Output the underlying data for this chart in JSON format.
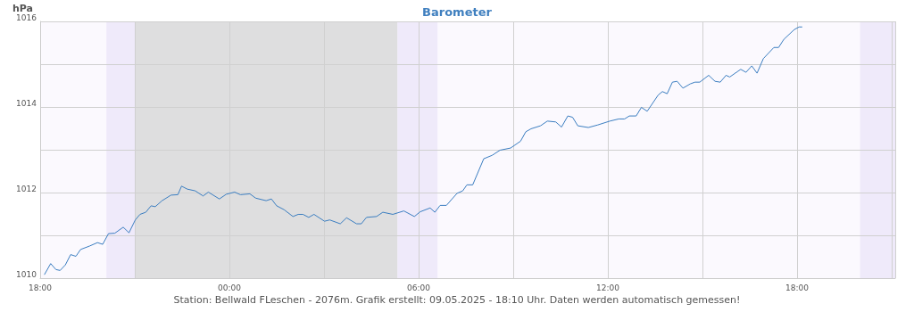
{
  "chart_data": {
    "type": "line",
    "title": "Barometer",
    "ylabel": "hPa",
    "annotations": [
      "Station: Bellwald FLeschen - 2076m. Grafik erstellt: 09.05.2025 - 18:10 Uhr. Daten werden automatisch gemessen!"
    ],
    "series": [
      {
        "color": "#3a7dc0",
        "x": [
          "2025-05-08T18:08",
          "2025-05-08T18:20",
          "2025-05-08T18:30",
          "2025-05-08T18:38",
          "2025-05-08T18:48",
          "2025-05-08T18:58",
          "2025-05-08T19:08",
          "2025-05-08T19:17",
          "2025-05-08T19:34",
          "2025-05-08T19:49",
          "2025-05-08T19:59",
          "2025-05-08T20:10",
          "2025-05-08T20:22",
          "2025-05-08T20:38",
          "2025-05-08T20:49",
          "2025-05-08T21:01",
          "2025-05-08T21:10",
          "2025-05-08T21:21",
          "2025-05-08T21:31",
          "2025-05-08T21:39",
          "2025-05-08T21:52",
          "2025-05-08T22:09",
          "2025-05-08T22:22",
          "2025-05-08T22:29",
          "2025-05-08T22:40",
          "2025-05-08T22:55",
          "2025-05-08T23:10",
          "2025-05-08T23:20",
          "2025-05-08T23:41",
          "2025-05-08T23:54",
          "2025-05-09T00:10",
          "2025-05-09T00:21",
          "2025-05-09T00:39",
          "2025-05-09T00:50",
          "2025-05-09T01:10",
          "2025-05-09T01:20",
          "2025-05-09T01:30",
          "2025-05-09T01:44",
          "2025-05-09T02:01",
          "2025-05-09T02:11",
          "2025-05-09T02:20",
          "2025-05-09T02:31",
          "2025-05-09T02:41",
          "2025-05-09T03:01",
          "2025-05-09T03:11",
          "2025-05-09T03:31",
          "2025-05-09T03:43",
          "2025-05-09T04:02",
          "2025-05-09T04:11",
          "2025-05-09T04:21",
          "2025-05-09T04:40",
          "2025-05-09T04:52",
          "2025-05-09T05:11",
          "2025-05-09T05:32",
          "2025-05-09T05:52",
          "2025-05-09T06:03",
          "2025-05-09T06:22",
          "2025-05-09T06:31",
          "2025-05-09T06:41",
          "2025-05-09T06:53",
          "2025-05-09T07:13",
          "2025-05-09T07:24",
          "2025-05-09T07:32",
          "2025-05-09T07:43",
          "2025-05-09T08:04",
          "2025-05-09T08:20",
          "2025-05-09T08:35",
          "2025-05-09T08:55",
          "2025-05-09T09:14",
          "2025-05-09T09:24",
          "2025-05-09T09:34",
          "2025-05-09T09:52",
          "2025-05-09T10:05",
          "2025-05-09T10:21",
          "2025-05-09T10:32",
          "2025-05-09T10:44",
          "2025-05-09T10:53",
          "2025-05-09T11:03",
          "2025-05-09T11:23",
          "2025-05-09T11:41",
          "2025-05-09T12:04",
          "2025-05-09T12:21",
          "2025-05-09T12:32",
          "2025-05-09T12:41",
          "2025-05-09T12:54",
          "2025-05-09T13:04",
          "2025-05-09T13:15",
          "2025-05-09T13:36",
          "2025-05-09T13:44",
          "2025-05-09T13:53",
          "2025-05-09T14:03",
          "2025-05-09T14:12",
          "2025-05-09T14:23",
          "2025-05-09T14:37",
          "2025-05-09T14:46",
          "2025-05-09T14:55",
          "2025-05-09T15:12",
          "2025-05-09T15:24",
          "2025-05-09T15:34",
          "2025-05-09T15:45",
          "2025-05-09T15:52",
          "2025-05-09T16:13",
          "2025-05-09T16:23",
          "2025-05-09T16:34",
          "2025-05-09T16:44",
          "2025-05-09T16:56",
          "2025-05-09T17:16",
          "2025-05-09T17:25",
          "2025-05-09T17:35",
          "2025-05-09T17:55",
          "2025-05-09T18:04",
          "2025-05-09T18:10"
        ],
        "values": [
          1010.08,
          1010.34,
          1010.2,
          1010.18,
          1010.31,
          1010.55,
          1010.51,
          1010.67,
          1010.75,
          1010.83,
          1010.79,
          1011.04,
          1011.05,
          1011.19,
          1011.06,
          1011.36,
          1011.49,
          1011.54,
          1011.69,
          1011.67,
          1011.81,
          1011.94,
          1011.95,
          1012.15,
          1012.08,
          1012.04,
          1011.92,
          1012.01,
          1011.85,
          1011.96,
          1012.01,
          1011.95,
          1011.97,
          1011.87,
          1011.81,
          1011.85,
          1011.69,
          1011.6,
          1011.44,
          1011.49,
          1011.49,
          1011.42,
          1011.49,
          1011.33,
          1011.36,
          1011.27,
          1011.41,
          1011.27,
          1011.27,
          1011.42,
          1011.44,
          1011.54,
          1011.49,
          1011.57,
          1011.44,
          1011.55,
          1011.64,
          1011.54,
          1011.7,
          1011.7,
          1011.98,
          1012.04,
          1012.18,
          1012.18,
          1012.79,
          1012.87,
          1012.99,
          1013.04,
          1013.2,
          1013.42,
          1013.49,
          1013.56,
          1013.67,
          1013.65,
          1013.53,
          1013.79,
          1013.76,
          1013.56,
          1013.52,
          1013.58,
          1013.67,
          1013.72,
          1013.72,
          1013.79,
          1013.79,
          1013.99,
          1013.9,
          1014.28,
          1014.36,
          1014.31,
          1014.58,
          1014.6,
          1014.44,
          1014.54,
          1014.58,
          1014.58,
          1014.74,
          1014.6,
          1014.58,
          1014.74,
          1014.7,
          1014.88,
          1014.81,
          1014.96,
          1014.79,
          1015.13,
          1015.39,
          1015.39,
          1015.58,
          1015.81,
          1015.87,
          1015.87
        ]
      }
    ],
    "xlim": [
      "2025-05-08T18:00",
      "2025-05-09T21:07"
    ],
    "xticks": [
      {
        "value": "2025-05-08T18:00",
        "label": "18:00"
      },
      {
        "value": "2025-05-08T21:00",
        "label": null
      },
      {
        "value": "2025-05-09T00:00",
        "label": "00:00"
      },
      {
        "value": "2025-05-09T03:00",
        "label": null
      },
      {
        "value": "2025-05-09T06:00",
        "label": "06:00"
      },
      {
        "value": "2025-05-09T09:00",
        "label": null
      },
      {
        "value": "2025-05-09T12:00",
        "label": "12:00"
      },
      {
        "value": "2025-05-09T15:00",
        "label": null
      },
      {
        "value": "2025-05-09T18:00",
        "label": "18:00"
      }
    ],
    "ylim": [
      1010,
      1016
    ],
    "yticks": [
      1010,
      {
        "value": 1011,
        "label": null
      },
      1012,
      {
        "value": 1013,
        "label": null
      },
      1014,
      {
        "value": 1015,
        "label": null
      },
      1016
    ],
    "bands": [
      {
        "axis": "x",
        "from": "2025-05-08T20:06",
        "to": "2025-05-08T21:00",
        "color": "#efeafa"
      },
      {
        "axis": "x",
        "from": "2025-05-08T21:00",
        "to": "2025-05-09T05:20",
        "color": "#dededf"
      },
      {
        "axis": "x",
        "from": "2025-05-09T05:20",
        "to": "2025-05-09T06:36",
        "color": "#efeafa"
      },
      {
        "axis": "x",
        "from": "2025-05-09T20:00",
        "to": "2025-05-09T21:07",
        "color": "#efeafa"
      }
    ],
    "grid": true,
    "marker": "none",
    "line_style": "solid"
  }
}
